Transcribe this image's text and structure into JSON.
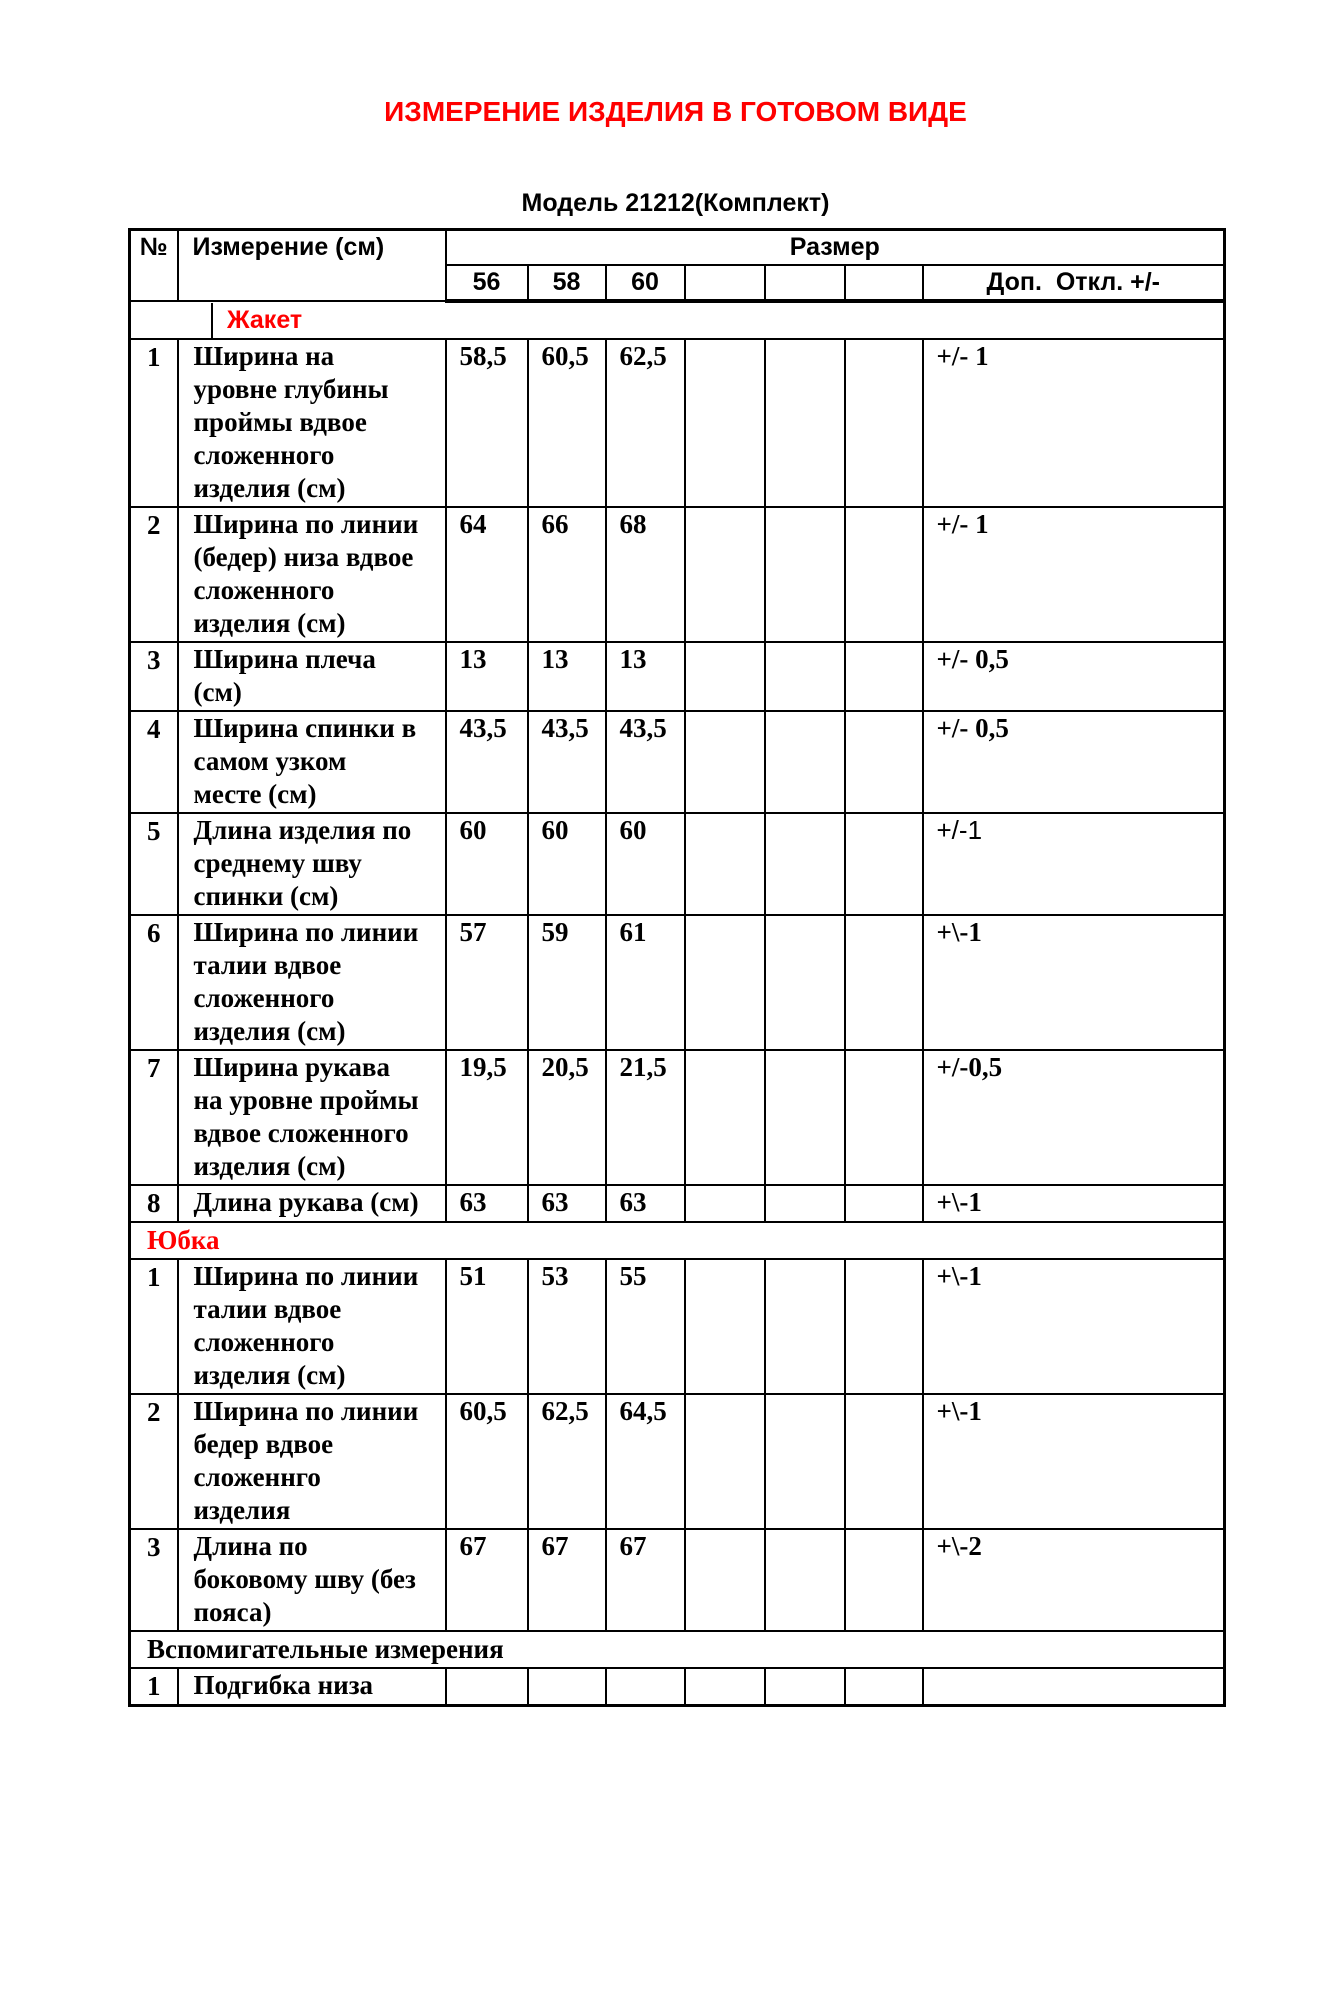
{
  "header": {
    "title": "ИЗМЕРЕНИЕ ИЗДЕЛИЯ В ГОТОВОМ ВИДЕ",
    "subtitle": "Модель 21212(Комплект)"
  },
  "table": {
    "col_num": "№",
    "col_measurement": "Измерение (см)",
    "col_size_group": "Размер",
    "size_cols": [
      "56",
      "58",
      "60",
      "",
      "",
      ""
    ],
    "col_tolerance": "Доп.  Откл. +/-",
    "sections": [
      {
        "id": "jacket",
        "label": "Жакет",
        "label_color": "#ff0000",
        "rows": [
          {
            "num": "1",
            "name": "Ширина на\nуровне глубины\nпроймы вдвое\nсложенного\nизделия (см)",
            "values": [
              "58,5",
              "60,5",
              "62,5",
              "",
              "",
              ""
            ],
            "tolerance": "+/- 1",
            "tol_sans": false
          },
          {
            "num": "2",
            "name": "Ширина по линии\n(бедер) низа вдвое\nсложенного\nизделия (см)",
            "values": [
              "64",
              "66",
              "68",
              "",
              "",
              ""
            ],
            "tolerance": "+/- 1",
            "tol_sans": false
          },
          {
            "num": "3",
            "name": "Ширина плеча\n(см)",
            "values": [
              "13",
              "13",
              "13",
              "",
              "",
              ""
            ],
            "tolerance": "+/- 0,5",
            "tol_sans": false
          },
          {
            "num": "4",
            "name": "Ширина спинки в\nсамом узком\nместе (см)",
            "values": [
              "43,5",
              "43,5",
              "43,5",
              "",
              "",
              ""
            ],
            "tolerance": "+/- 0,5",
            "tol_sans": false
          },
          {
            "num": "5",
            "name": "Длина изделия по\nсреднему шву\nспинки (см)",
            "values": [
              "60",
              "60",
              "60",
              "",
              "",
              ""
            ],
            "tolerance": "+/-1",
            "tol_sans": true
          },
          {
            "num": "6",
            "name": "Ширина по линии\nталии вдвое\nсложенного\nизделия (см)",
            "values": [
              "57",
              "59",
              "61",
              "",
              "",
              ""
            ],
            "tolerance": "+\\-1",
            "tol_sans": false
          },
          {
            "num": "7",
            "name": "Ширина рукава\nна уровне проймы\nвдвое сложенного\nизделия (см)",
            "values": [
              "19,5",
              "20,5",
              "21,5",
              "",
              "",
              ""
            ],
            "tolerance": "+/-0,5",
            "tol_sans": false
          },
          {
            "num": "8",
            "name": "Длина рукава (см)",
            "values": [
              "63",
              "63",
              "63",
              "",
              "",
              ""
            ],
            "tolerance": "+\\-1",
            "tol_sans": false
          }
        ]
      },
      {
        "id": "skirt",
        "label": "Юбка",
        "label_color": "#ff0000",
        "rows": [
          {
            "num": "1",
            "name": "Ширина по линии\nталии вдвое\nсложенного\nизделия (см)",
            "values": [
              "51",
              "53",
              "55",
              "",
              "",
              ""
            ],
            "tolerance": "+\\-1",
            "tol_sans": false
          },
          {
            "num": "2",
            "name": "Ширина по линии\nбедер вдвое\nсложеннго\nизделия",
            "values": [
              "60,5",
              "62,5",
              "64,5",
              "",
              "",
              ""
            ],
            "tolerance": "+\\-1",
            "tol_sans": false
          },
          {
            "num": "3",
            "name": "Длина по\nбоковому шву (без\nпояса)",
            "values": [
              "67",
              "67",
              "67",
              "",
              "",
              ""
            ],
            "tolerance": "+\\-2",
            "tol_sans": false
          }
        ]
      },
      {
        "id": "auxiliary",
        "label": "Вспомигательные измерения",
        "label_color": "#000000",
        "rows": [
          {
            "num": "1",
            "name": "Подгибка низа",
            "values": [
              "",
              "",
              "",
              "",
              "",
              ""
            ],
            "tolerance": "",
            "tol_sans": false
          }
        ]
      }
    ]
  }
}
